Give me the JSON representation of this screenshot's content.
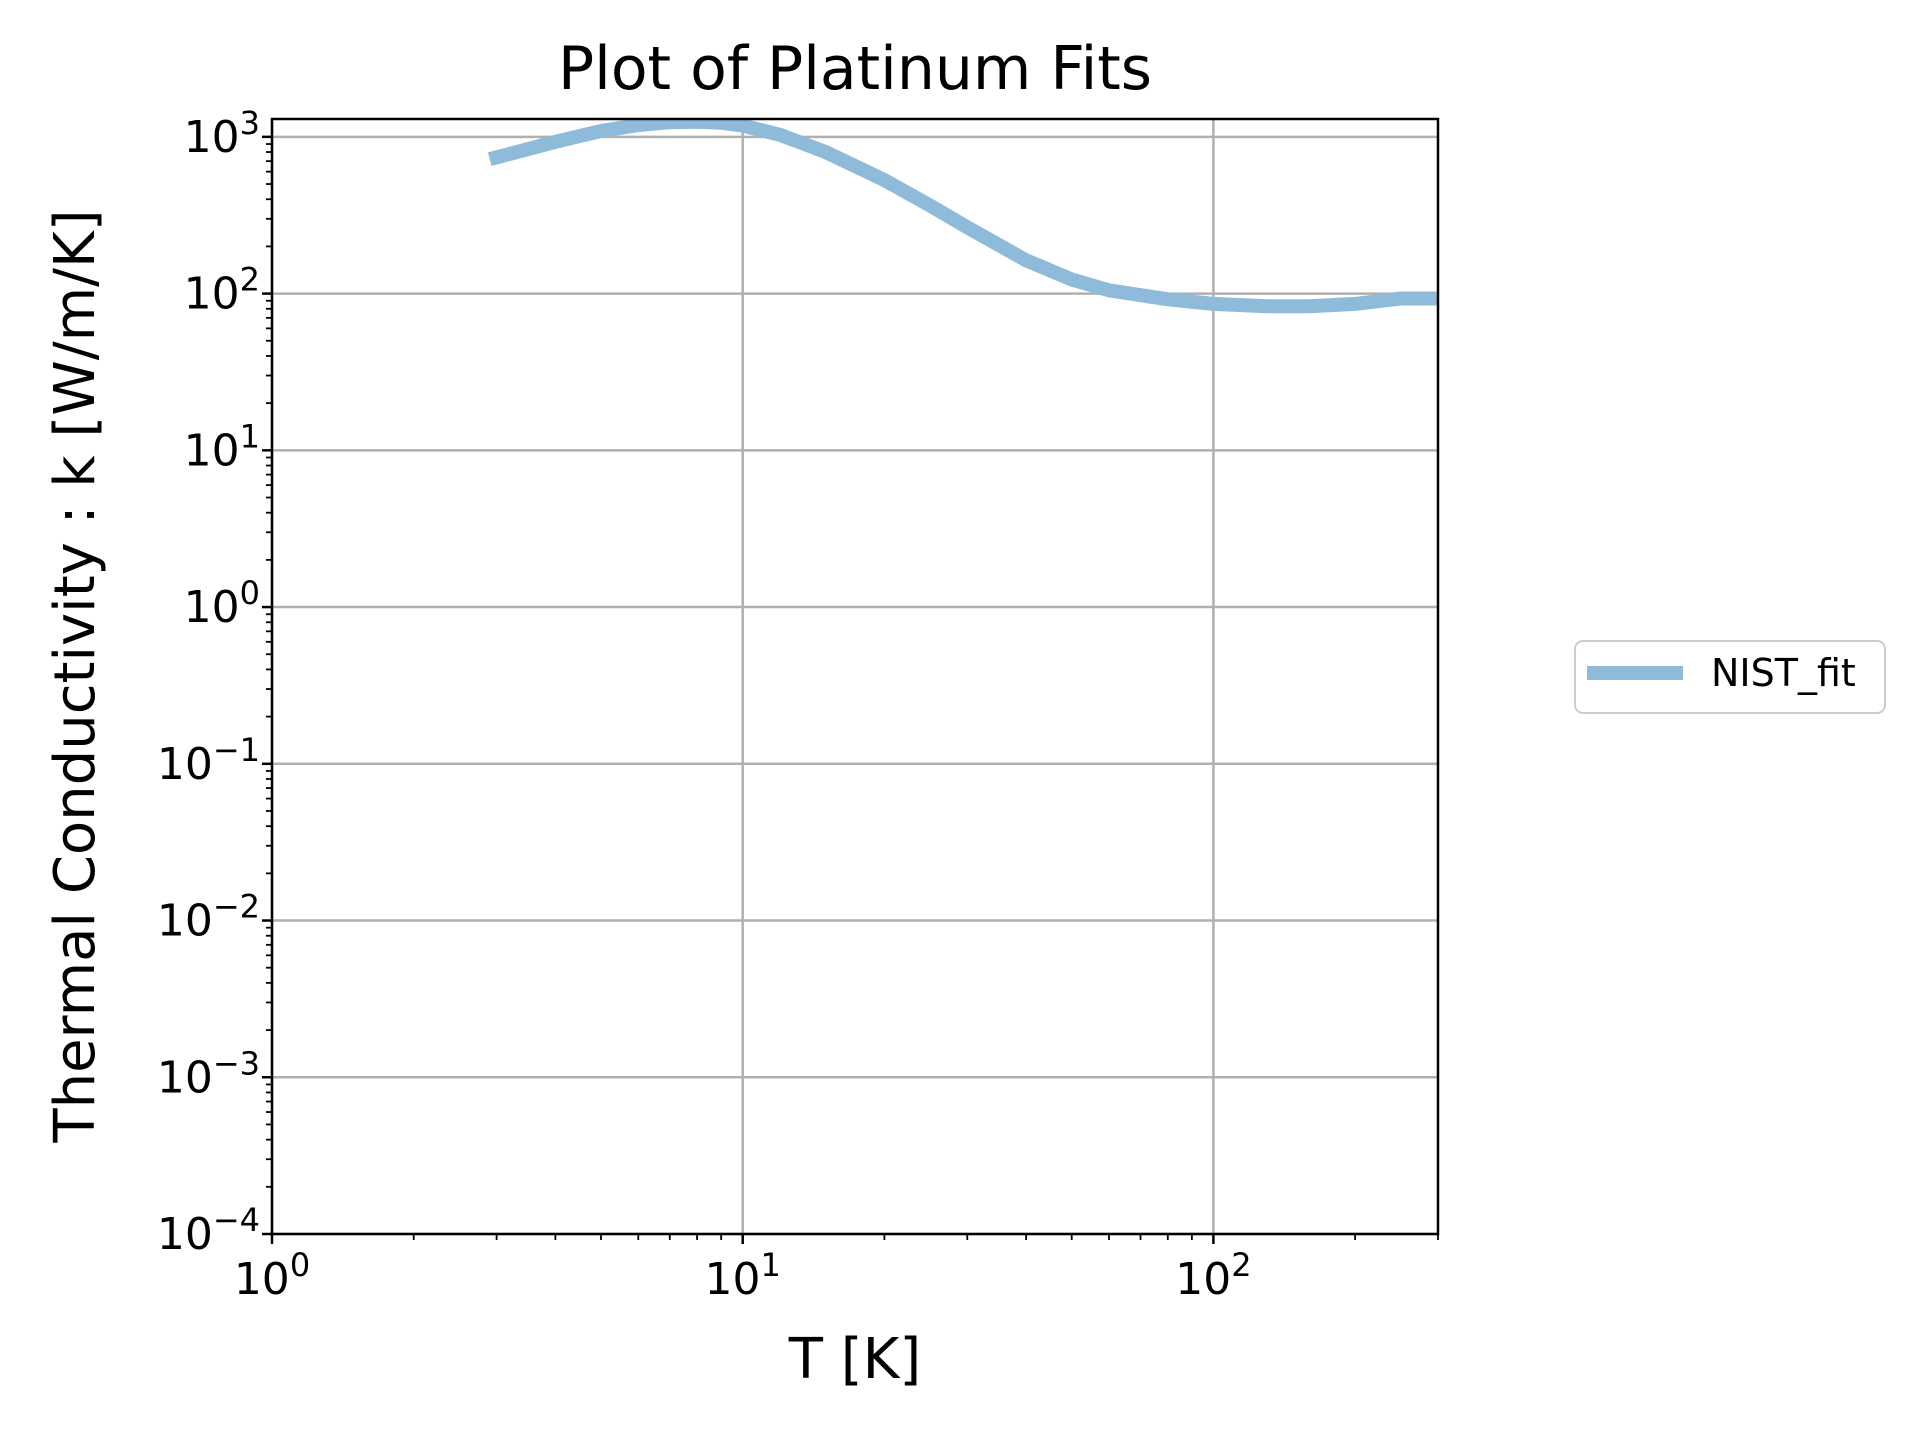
{
  "chart_data": {
    "type": "line",
    "title": "Plot of Platinum Fits",
    "xlabel": "T [K]",
    "ylabel": "Thermal Conductivity : k [W/m/K]",
    "x_scale": "log",
    "y_scale": "log",
    "xlim": [
      1,
      300
    ],
    "ylim": [
      0.0001,
      1300
    ],
    "x_ticks": [
      {
        "value": 1,
        "base": "10",
        "exp": "0"
      },
      {
        "value": 10,
        "base": "10",
        "exp": "1"
      },
      {
        "value": 100,
        "base": "10",
        "exp": "2"
      }
    ],
    "y_ticks": [
      {
        "value": 0.0001,
        "base": "10",
        "exp": "−4"
      },
      {
        "value": 0.001,
        "base": "10",
        "exp": "−3"
      },
      {
        "value": 0.01,
        "base": "10",
        "exp": "−2"
      },
      {
        "value": 0.1,
        "base": "10",
        "exp": "−1"
      },
      {
        "value": 1,
        "base": "10",
        "exp": "0"
      },
      {
        "value": 10,
        "base": "10",
        "exp": "1"
      },
      {
        "value": 100,
        "base": "10",
        "exp": "2"
      },
      {
        "value": 1000,
        "base": "10",
        "exp": "3"
      }
    ],
    "grid": true,
    "legend_position": "outside-right",
    "series": [
      {
        "name": "NIST_fit",
        "color": "#8fbbda",
        "x": [
          2.9,
          4,
          5,
          6,
          7,
          8,
          9,
          10,
          12,
          15,
          20,
          25,
          30,
          40,
          50,
          60,
          80,
          100,
          130,
          160,
          200,
          250,
          300
        ],
        "y": [
          720,
          930,
          1090,
          1190,
          1240,
          1250,
          1230,
          1180,
          1030,
          800,
          530,
          365,
          265,
          163,
          123,
          105,
          92,
          86,
          83,
          83,
          86,
          93,
          93
        ]
      }
    ]
  }
}
